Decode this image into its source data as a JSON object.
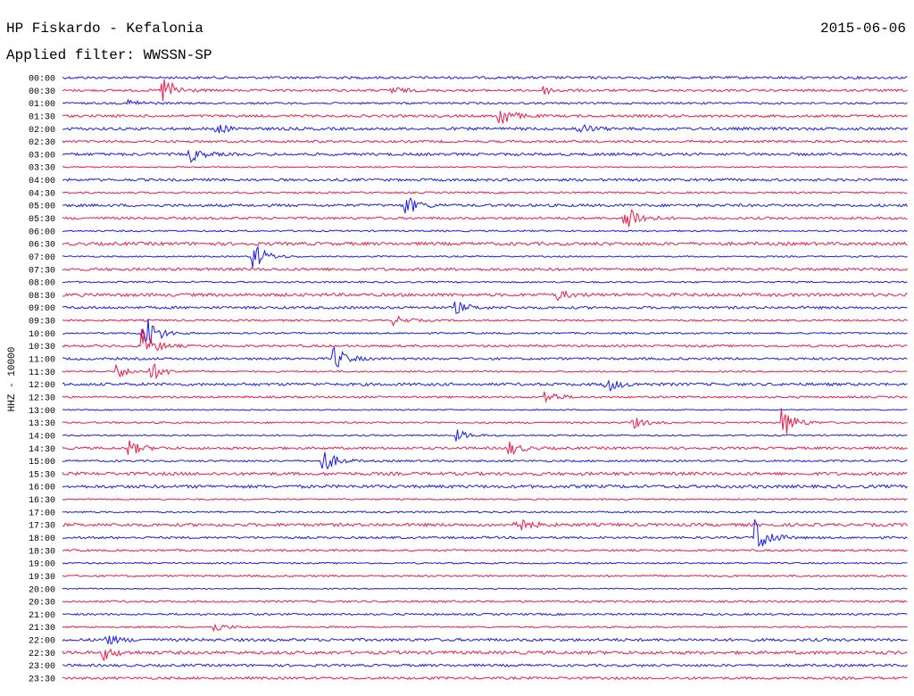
{
  "header": {
    "title": "HP Fiskardo - Kefalonia",
    "date": "2015-06-06",
    "filter": "Applied filter: WWSSN-SP"
  },
  "channel_label": "HHZ - 10000",
  "trace_colors": [
    "#1a1aee",
    "#ee1a4a"
  ],
  "rows": [
    "00:00",
    "00:30",
    "01:00",
    "01:30",
    "02:00",
    "02:30",
    "03:00",
    "03:30",
    "04:00",
    "04:30",
    "05:00",
    "05:30",
    "06:00",
    "06:30",
    "07:00",
    "07:30",
    "08:00",
    "08:30",
    "09:00",
    "09:30",
    "10:00",
    "10:30",
    "11:00",
    "11:30",
    "12:00",
    "12:30",
    "13:00",
    "13:30",
    "14:00",
    "14:30",
    "15:00",
    "15:30",
    "16:00",
    "16:30",
    "17:00",
    "17:30",
    "18:00",
    "18:30",
    "19:00",
    "19:30",
    "20:00",
    "20:30",
    "21:00",
    "21:30",
    "22:00",
    "22:30",
    "23:00",
    "23:30"
  ]
}
